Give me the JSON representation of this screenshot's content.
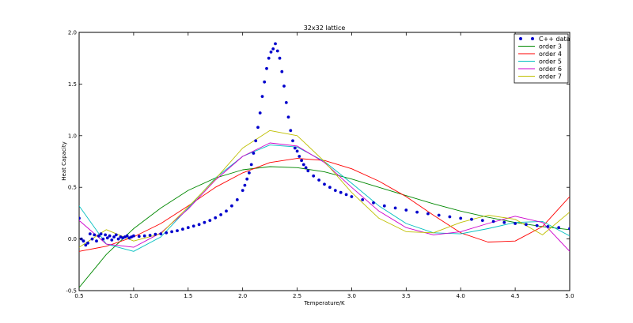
{
  "chart_data": {
    "type": "scatter",
    "title": "32x32 lattice",
    "xlabel": "Temperature/K",
    "ylabel": "Heat Capacity",
    "xlim": [
      0.5,
      5.0
    ],
    "ylim": [
      -0.5,
      2.0
    ],
    "x_ticks": [
      "0.5",
      "1.0",
      "1.5",
      "2.0",
      "2.5",
      "3.0",
      "3.5",
      "4.0",
      "4.5",
      "5.0"
    ],
    "y_ticks": [
      "-0.5",
      "0.0",
      "0.5",
      "1.0",
      "1.5",
      "2.0"
    ],
    "legend_position": "top-right",
    "grid": false,
    "scatter_series": {
      "name": "C++ data",
      "color": "#0000cc",
      "points": [
        [
          0.5,
          0.2
        ],
        [
          0.52,
          0.0
        ],
        [
          0.54,
          -0.02
        ],
        [
          0.56,
          -0.06
        ],
        [
          0.58,
          -0.04
        ],
        [
          0.6,
          0.05
        ],
        [
          0.62,
          0.0
        ],
        [
          0.64,
          0.04
        ],
        [
          0.66,
          -0.02
        ],
        [
          0.68,
          0.03
        ],
        [
          0.7,
          0.05
        ],
        [
          0.72,
          0.0
        ],
        [
          0.74,
          0.04
        ],
        [
          0.76,
          0.01
        ],
        [
          0.78,
          0.03
        ],
        [
          0.8,
          -0.01
        ],
        [
          0.82,
          0.02
        ],
        [
          0.84,
          0.04
        ],
        [
          0.86,
          0.0
        ],
        [
          0.88,
          0.02
        ],
        [
          0.9,
          0.01
        ],
        [
          0.92,
          0.02
        ],
        [
          0.94,
          0.03
        ],
        [
          0.96,
          0.01
        ],
        [
          0.98,
          0.02
        ],
        [
          1.0,
          0.03
        ],
        [
          1.05,
          0.025
        ],
        [
          1.1,
          0.03
        ],
        [
          1.15,
          0.035
        ],
        [
          1.2,
          0.045
        ],
        [
          1.25,
          0.05
        ],
        [
          1.3,
          0.06
        ],
        [
          1.35,
          0.07
        ],
        [
          1.4,
          0.08
        ],
        [
          1.45,
          0.095
        ],
        [
          1.5,
          0.11
        ],
        [
          1.55,
          0.125
        ],
        [
          1.6,
          0.14
        ],
        [
          1.65,
          0.16
        ],
        [
          1.7,
          0.18
        ],
        [
          1.75,
          0.205
        ],
        [
          1.8,
          0.235
        ],
        [
          1.85,
          0.27
        ],
        [
          1.9,
          0.32
        ],
        [
          1.95,
          0.38
        ],
        [
          2.0,
          0.47
        ],
        [
          2.02,
          0.52
        ],
        [
          2.04,
          0.58
        ],
        [
          2.06,
          0.64
        ],
        [
          2.08,
          0.72
        ],
        [
          2.1,
          0.83
        ],
        [
          2.12,
          0.95
        ],
        [
          2.14,
          1.08
        ],
        [
          2.16,
          1.22
        ],
        [
          2.18,
          1.38
        ],
        [
          2.2,
          1.52
        ],
        [
          2.22,
          1.65
        ],
        [
          2.24,
          1.75
        ],
        [
          2.26,
          1.81
        ],
        [
          2.28,
          1.84
        ],
        [
          2.3,
          1.89
        ],
        [
          2.32,
          1.82
        ],
        [
          2.34,
          1.75
        ],
        [
          2.36,
          1.62
        ],
        [
          2.38,
          1.48
        ],
        [
          2.4,
          1.32
        ],
        [
          2.42,
          1.18
        ],
        [
          2.44,
          1.05
        ],
        [
          2.46,
          0.95
        ],
        [
          2.48,
          0.88
        ],
        [
          2.5,
          0.85
        ],
        [
          2.52,
          0.8
        ],
        [
          2.54,
          0.76
        ],
        [
          2.56,
          0.72
        ],
        [
          2.58,
          0.69
        ],
        [
          2.6,
          0.66
        ],
        [
          2.65,
          0.61
        ],
        [
          2.7,
          0.57
        ],
        [
          2.75,
          0.53
        ],
        [
          2.8,
          0.5
        ],
        [
          2.85,
          0.47
        ],
        [
          2.9,
          0.45
        ],
        [
          2.95,
          0.43
        ],
        [
          3.0,
          0.41
        ],
        [
          3.1,
          0.38
        ],
        [
          3.2,
          0.35
        ],
        [
          3.3,
          0.32
        ],
        [
          3.4,
          0.3
        ],
        [
          3.5,
          0.28
        ],
        [
          3.6,
          0.26
        ],
        [
          3.7,
          0.245
        ],
        [
          3.8,
          0.23
        ],
        [
          3.9,
          0.215
        ],
        [
          4.0,
          0.2
        ],
        [
          4.1,
          0.19
        ],
        [
          4.2,
          0.18
        ],
        [
          4.3,
          0.17
        ],
        [
          4.4,
          0.16
        ],
        [
          4.5,
          0.15
        ],
        [
          4.6,
          0.14
        ],
        [
          4.7,
          0.13
        ],
        [
          4.8,
          0.12
        ],
        [
          4.9,
          0.11
        ],
        [
          5.0,
          0.1
        ]
      ]
    },
    "fit_series": [
      {
        "name": "order 3",
        "color": "#008800",
        "points": [
          [
            0.5,
            -0.47
          ],
          [
            0.75,
            -0.15
          ],
          [
            1.0,
            0.1
          ],
          [
            1.25,
            0.3
          ],
          [
            1.5,
            0.47
          ],
          [
            1.75,
            0.59
          ],
          [
            2.0,
            0.67
          ],
          [
            2.25,
            0.7
          ],
          [
            2.5,
            0.69
          ],
          [
            2.75,
            0.65
          ],
          [
            3.0,
            0.58
          ],
          [
            3.25,
            0.5
          ],
          [
            3.5,
            0.42
          ],
          [
            3.75,
            0.34
          ],
          [
            4.0,
            0.27
          ],
          [
            4.25,
            0.21
          ],
          [
            4.5,
            0.16
          ],
          [
            4.75,
            0.12
          ],
          [
            5.0,
            0.09
          ]
        ]
      },
      {
        "name": "order 4",
        "color": "#ff0000",
        "points": [
          [
            0.5,
            -0.12
          ],
          [
            0.75,
            -0.07
          ],
          [
            1.0,
            0.02
          ],
          [
            1.25,
            0.15
          ],
          [
            1.5,
            0.32
          ],
          [
            1.75,
            0.5
          ],
          [
            2.0,
            0.64
          ],
          [
            2.25,
            0.74
          ],
          [
            2.5,
            0.78
          ],
          [
            2.75,
            0.76
          ],
          [
            3.0,
            0.68
          ],
          [
            3.25,
            0.56
          ],
          [
            3.5,
            0.41
          ],
          [
            3.75,
            0.23
          ],
          [
            4.0,
            0.06
          ],
          [
            4.25,
            -0.03
          ],
          [
            4.5,
            -0.02
          ],
          [
            4.75,
            0.12
          ],
          [
            5.0,
            0.41
          ]
        ]
      },
      {
        "name": "order 5",
        "color": "#00bfbf",
        "points": [
          [
            0.5,
            0.32
          ],
          [
            0.75,
            -0.05
          ],
          [
            1.0,
            -0.12
          ],
          [
            1.25,
            0.02
          ],
          [
            1.5,
            0.3
          ],
          [
            1.75,
            0.59
          ],
          [
            2.0,
            0.8
          ],
          [
            2.25,
            0.91
          ],
          [
            2.5,
            0.89
          ],
          [
            2.75,
            0.75
          ],
          [
            3.0,
            0.54
          ],
          [
            3.25,
            0.32
          ],
          [
            3.5,
            0.15
          ],
          [
            3.75,
            0.06
          ],
          [
            4.0,
            0.05
          ],
          [
            4.25,
            0.1
          ],
          [
            4.5,
            0.16
          ],
          [
            4.75,
            0.17
          ],
          [
            5.0,
            0.03
          ]
        ]
      },
      {
        "name": "order 6",
        "color": "#cc00cc",
        "points": [
          [
            0.5,
            0.18
          ],
          [
            0.75,
            -0.05
          ],
          [
            1.0,
            -0.08
          ],
          [
            1.25,
            0.06
          ],
          [
            1.5,
            0.29
          ],
          [
            1.75,
            0.57
          ],
          [
            2.0,
            0.8
          ],
          [
            2.25,
            0.93
          ],
          [
            2.5,
            0.9
          ],
          [
            2.75,
            0.74
          ],
          [
            3.0,
            0.5
          ],
          [
            3.25,
            0.27
          ],
          [
            3.5,
            0.11
          ],
          [
            3.75,
            0.04
          ],
          [
            4.0,
            0.07
          ],
          [
            4.25,
            0.15
          ],
          [
            4.5,
            0.22
          ],
          [
            4.75,
            0.16
          ],
          [
            5.0,
            -0.12
          ]
        ]
      },
      {
        "name": "order 7",
        "color": "#bfbf00",
        "points": [
          [
            0.5,
            -0.08
          ],
          [
            0.75,
            0.09
          ],
          [
            1.0,
            -0.02
          ],
          [
            1.25,
            0.05
          ],
          [
            1.5,
            0.31
          ],
          [
            1.75,
            0.58
          ],
          [
            2.0,
            0.88
          ],
          [
            2.25,
            1.05
          ],
          [
            2.5,
            1.0
          ],
          [
            2.75,
            0.75
          ],
          [
            3.0,
            0.45
          ],
          [
            3.25,
            0.2
          ],
          [
            3.5,
            0.07
          ],
          [
            3.75,
            0.06
          ],
          [
            4.0,
            0.16
          ],
          [
            4.25,
            0.23
          ],
          [
            4.5,
            0.19
          ],
          [
            4.75,
            0.04
          ],
          [
            5.0,
            0.26
          ]
        ]
      }
    ]
  }
}
